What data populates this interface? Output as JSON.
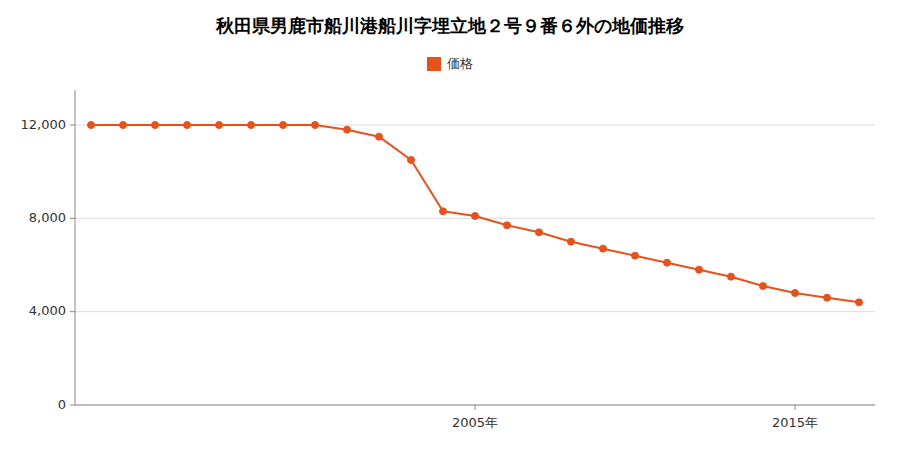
{
  "chart_data": {
    "type": "line",
    "title": "秋田県男鹿市船川港船川字埋立地２号９番６外の地価推移",
    "x": [
      1993,
      1994,
      1995,
      1996,
      1997,
      1998,
      1999,
      2000,
      2001,
      2002,
      2003,
      2004,
      2005,
      2006,
      2007,
      2008,
      2009,
      2010,
      2011,
      2012,
      2013,
      2014,
      2015,
      2016,
      2017
    ],
    "series": [
      {
        "name": "価格",
        "color": "#e8521a",
        "values": [
          12000,
          12000,
          12000,
          12000,
          12000,
          12000,
          12000,
          12000,
          11800,
          11500,
          10500,
          8300,
          8100,
          7700,
          7400,
          7000,
          6700,
          6400,
          6100,
          5800,
          5500,
          5100,
          4800,
          4600,
          4400
        ]
      }
    ],
    "xlim": [
      1992.5,
      2017.5
    ],
    "xticks": [
      {
        "value": 2005,
        "label": "2005年"
      },
      {
        "value": 2015,
        "label": "2015年"
      }
    ],
    "ylim": [
      0,
      13500
    ],
    "yticks": [
      0,
      {
        "value": 4000,
        "label": "4,000"
      },
      {
        "value": 8000,
        "label": "8,000"
      },
      {
        "value": 12000,
        "label": "12,000"
      }
    ],
    "grid": "y",
    "marker": "circle",
    "legend": "top"
  }
}
